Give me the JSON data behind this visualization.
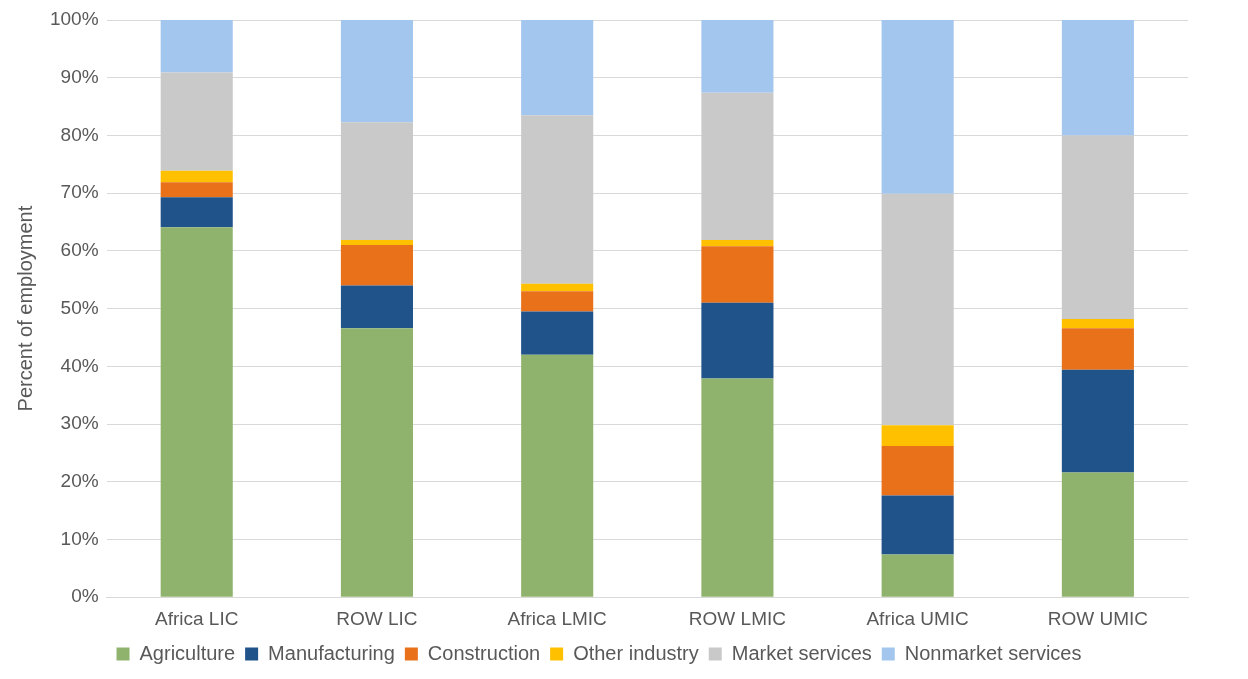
{
  "chart_data": {
    "type": "bar",
    "stacked": true,
    "ylabel": "Percent of employment",
    "categories": [
      "Africa LIC",
      "ROW LIC",
      "Africa LMIC",
      "ROW LMIC",
      "Africa UMIC",
      "ROW UMIC"
    ],
    "series": [
      {
        "name": "Agriculture",
        "color": "#8fb36c",
        "values": [
          64.1,
          46.6,
          42.0,
          37.9,
          7.4,
          21.6
        ]
      },
      {
        "name": "Manufacturing",
        "color": "#1f538a",
        "values": [
          5.2,
          7.4,
          7.5,
          13.1,
          10.2,
          17.8
        ]
      },
      {
        "name": "Construction",
        "color": "#e8711a",
        "values": [
          2.6,
          7.0,
          3.5,
          9.8,
          8.6,
          7.2
        ]
      },
      {
        "name": "Other industry",
        "color": "#ffc000",
        "values": [
          2.0,
          0.9,
          1.3,
          1.1,
          3.6,
          1.6
        ]
      },
      {
        "name": "Market services",
        "color": "#c9c9c9",
        "values": [
          17.0,
          20.4,
          29.2,
          25.5,
          40.1,
          31.8
        ]
      },
      {
        "name": "Nonmarket services",
        "color": "#a3c6ef",
        "values": [
          9.1,
          17.7,
          16.5,
          12.6,
          30.1,
          20.0
        ]
      }
    ],
    "ylim": [
      0,
      100
    ],
    "yticks": [
      {
        "value": 0,
        "label": "0%"
      },
      {
        "value": 10,
        "label": "10%"
      },
      {
        "value": 20,
        "label": "20%"
      },
      {
        "value": 30,
        "label": "30%"
      },
      {
        "value": 40,
        "label": "40%"
      },
      {
        "value": 50,
        "label": "50%"
      },
      {
        "value": 60,
        "label": "60%"
      },
      {
        "value": 70,
        "label": "70%"
      },
      {
        "value": 80,
        "label": "80%"
      },
      {
        "value": 90,
        "label": "90%"
      },
      {
        "value": 100,
        "label": "100%"
      }
    ],
    "grid": "y",
    "legend": "bottom"
  }
}
